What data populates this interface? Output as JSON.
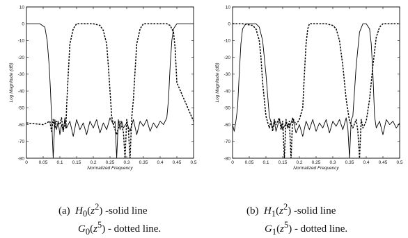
{
  "chart_data": [
    {
      "type": "line",
      "panel": "a",
      "xlabel": "Normalized Frequency",
      "ylabel": "Log Magnitude (dB)",
      "xlim": [
        0,
        0.5
      ],
      "ylim": [
        -80,
        10
      ],
      "xticks": [
        "0",
        "0.05",
        "0.1",
        "0.15",
        "0.2",
        "0.25",
        "0.3",
        "0.35",
        "0.4",
        "0.45",
        "0.5"
      ],
      "yticks": [
        "10",
        "0",
        "-10",
        "-20",
        "-30",
        "-40",
        "-50",
        "-60",
        "-70",
        "-80"
      ],
      "grid": false,
      "series": [
        {
          "style": "solid",
          "x": [
            0,
            0.02,
            0.04,
            0.055,
            0.062,
            0.068,
            0.072,
            0.075,
            0.08,
            0.085,
            0.09,
            0.095,
            0.1,
            0.105,
            0.11,
            0.115,
            0.12,
            0.13,
            0.14,
            0.15,
            0.16,
            0.17,
            0.18,
            0.19,
            0.2,
            0.21,
            0.22,
            0.23,
            0.24,
            0.25,
            0.26,
            0.265,
            0.27,
            0.275,
            0.28,
            0.285,
            0.29,
            0.3,
            0.31,
            0.32,
            0.33,
            0.34,
            0.35,
            0.36,
            0.37,
            0.38,
            0.39,
            0.4,
            0.41,
            0.42,
            0.425,
            0.43,
            0.435,
            0.44,
            0.45,
            0.46,
            0.47,
            0.48,
            0.49,
            0.5
          ],
          "y": [
            0,
            0,
            0,
            -2,
            -10,
            -25,
            -40,
            -55,
            -80,
            -57,
            -63,
            -58,
            -66,
            -60,
            -64,
            -56,
            -62,
            -58,
            -67,
            -57,
            -63,
            -59,
            -66,
            -58,
            -62,
            -57,
            -65,
            -59,
            -63,
            -56,
            -60,
            -58,
            -80,
            -57,
            -63,
            -58,
            -62,
            -59,
            -64,
            -57,
            -66,
            -58,
            -61,
            -57,
            -64,
            -59,
            -62,
            -58,
            -60,
            -56,
            -45,
            -25,
            -10,
            -3,
            0,
            0,
            0,
            0,
            0,
            0
          ]
        },
        {
          "style": "dotted",
          "x": [
            0,
            0.05,
            0.07,
            0.075,
            0.08,
            0.085,
            0.09,
            0.1,
            0.105,
            0.11,
            0.115,
            0.118,
            0.12,
            0.125,
            0.13,
            0.14,
            0.15,
            0.16,
            0.2,
            0.22,
            0.23,
            0.24,
            0.245,
            0.25,
            0.255,
            0.26,
            0.27,
            0.28,
            0.29,
            0.295,
            0.3,
            0.305,
            0.31,
            0.315,
            0.32,
            0.325,
            0.33,
            0.34,
            0.35,
            0.4,
            0.42,
            0.43,
            0.44,
            0.445,
            0.45,
            0.5
          ],
          "y": [
            -59,
            -60,
            -58,
            -64,
            -57,
            -62,
            -58,
            -60,
            -56,
            -64,
            -58,
            -62,
            -50,
            -30,
            -12,
            -3,
            0,
            0,
            0,
            -1,
            -4,
            -12,
            -25,
            -40,
            -55,
            -60,
            -66,
            -58,
            -64,
            -80,
            -57,
            -63,
            -80,
            -56,
            -45,
            -28,
            -12,
            -3,
            0,
            0,
            0,
            -1,
            -5,
            -15,
            -35,
            -58
          ]
        }
      ]
    },
    {
      "type": "line",
      "panel": "b",
      "xlabel": "Normalized Frequency",
      "ylabel": "Log Magnitude (dB)",
      "xlim": [
        0,
        0.5
      ],
      "ylim": [
        -80,
        10
      ],
      "xticks": [
        "0",
        "0.05",
        "0.1",
        "0.15",
        "0.2",
        "0.25",
        "0.3",
        "0.35",
        "0.4",
        "0.45",
        "0.5"
      ],
      "yticks": [
        "10",
        "0",
        "-10",
        "-20",
        "-30",
        "-40",
        "-50",
        "-60",
        "-70",
        "-80"
      ],
      "grid": false,
      "series": [
        {
          "style": "solid",
          "x": [
            0,
            0.005,
            0.01,
            0.015,
            0.02,
            0.025,
            0.03,
            0.04,
            0.05,
            0.06,
            0.07,
            0.08,
            0.09,
            0.1,
            0.11,
            0.12,
            0.125,
            0.13,
            0.14,
            0.15,
            0.16,
            0.17,
            0.18,
            0.19,
            0.2,
            0.21,
            0.22,
            0.23,
            0.24,
            0.25,
            0.26,
            0.27,
            0.28,
            0.29,
            0.3,
            0.31,
            0.32,
            0.33,
            0.34,
            0.345,
            0.35,
            0.355,
            0.36,
            0.37,
            0.38,
            0.39,
            0.4,
            0.41,
            0.415,
            0.42,
            0.425,
            0.43,
            0.44,
            0.45,
            0.46,
            0.47,
            0.48,
            0.49,
            0.5
          ],
          "y": [
            -60,
            -64,
            -58,
            -50,
            -30,
            -12,
            -3,
            0,
            0,
            0,
            0,
            -2,
            -10,
            -30,
            -55,
            -62,
            -58,
            -64,
            -57,
            -63,
            -59,
            -62,
            -56,
            -65,
            -60,
            -67,
            -58,
            -63,
            -57,
            -64,
            -59,
            -62,
            -57,
            -65,
            -58,
            -61,
            -57,
            -63,
            -56,
            -62,
            -80,
            -57,
            -55,
            -25,
            -5,
            0,
            0,
            -3,
            -12,
            -30,
            -55,
            -62,
            -58,
            -66,
            -57,
            -60,
            -58,
            -62,
            -59
          ]
        },
        {
          "style": "dotted",
          "x": [
            0,
            0.03,
            0.06,
            0.07,
            0.08,
            0.085,
            0.09,
            0.1,
            0.11,
            0.115,
            0.12,
            0.125,
            0.13,
            0.14,
            0.145,
            0.15,
            0.155,
            0.16,
            0.165,
            0.17,
            0.175,
            0.18,
            0.19,
            0.2,
            0.21,
            0.215,
            0.22,
            0.225,
            0.23,
            0.24,
            0.25,
            0.26,
            0.28,
            0.3,
            0.31,
            0.32,
            0.33,
            0.34,
            0.35,
            0.36,
            0.37,
            0.375,
            0.38,
            0.385,
            0.39,
            0.395,
            0.4,
            0.41,
            0.42,
            0.43,
            0.44,
            0.45,
            0.46,
            0.47,
            0.48,
            0.49,
            0.5
          ],
          "y": [
            0,
            0,
            -1,
            -3,
            -10,
            -20,
            -35,
            -55,
            -62,
            -58,
            -64,
            -57,
            -60,
            -56,
            -63,
            -58,
            -80,
            -57,
            -62,
            -58,
            -80,
            -56,
            -60,
            -57,
            -50,
            -30,
            -12,
            -3,
            0,
            0,
            0,
            0,
            0,
            -1,
            -3,
            -10,
            -25,
            -45,
            -58,
            -62,
            -57,
            -64,
            -80,
            -57,
            -62,
            -60,
            -58,
            -45,
            -25,
            -8,
            -2,
            0,
            0,
            0,
            0,
            0,
            0
          ]
        }
      ]
    }
  ],
  "captions": {
    "a": {
      "label": "(a)",
      "line1_var": "H",
      "line1_sub": "0",
      "line1_arg": "z",
      "line1_sup": "2",
      "line1_text": "-solid line",
      "line2_var": "G",
      "line2_sub": "0",
      "line2_arg": "z",
      "line2_sup": "5",
      "line2_text": "- dotted line."
    },
    "b": {
      "label": "(b)",
      "line1_var": "H",
      "line1_sub": "1",
      "line1_arg": "z",
      "line1_sup": "2",
      "line1_text": "-solid line",
      "line2_var": "G",
      "line2_sub": "1",
      "line2_arg": "z",
      "line2_sup": "5",
      "line2_text": "- dotted line."
    }
  }
}
